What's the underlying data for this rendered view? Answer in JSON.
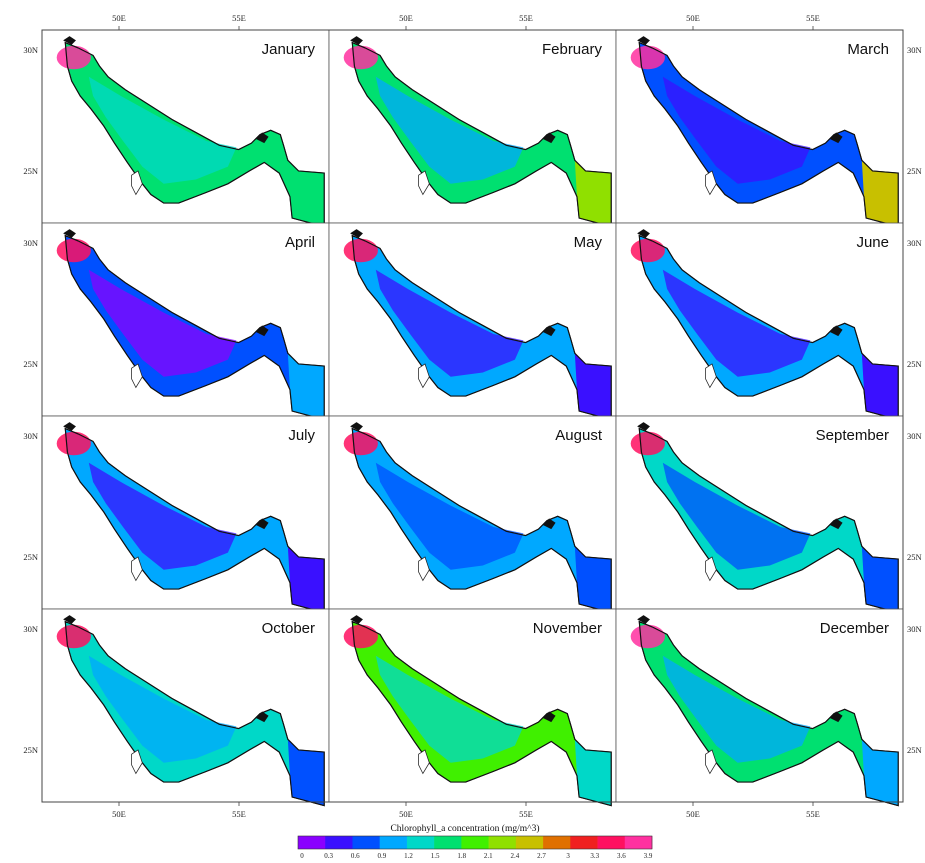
{
  "figure": {
    "panels": [
      {
        "month": "January",
        "mean_chl": 1.75,
        "north_hot": 3.6,
        "east_val": 1.5
      },
      {
        "month": "February",
        "mean_chl": 1.65,
        "north_hot": 3.9,
        "east_val": 2.1
      },
      {
        "month": "March",
        "mean_chl": 0.85,
        "north_hot": 3.9,
        "east_val": 2.6
      },
      {
        "month": "April",
        "mean_chl": 0.7,
        "north_hot": 3.5,
        "east_val": 1.1
      },
      {
        "month": "May",
        "mean_chl": 1.05,
        "north_hot": 3.3,
        "east_val": 0.4
      },
      {
        "month": "June",
        "mean_chl": 0.95,
        "north_hot": 3.3,
        "east_val": 0.4
      },
      {
        "month": "July",
        "mean_chl": 1.05,
        "north_hot": 3.3,
        "east_val": 0.4
      },
      {
        "month": "August",
        "mean_chl": 1.15,
        "north_hot": 3.3,
        "east_val": 0.6
      },
      {
        "month": "September",
        "mean_chl": 1.3,
        "north_hot": 3.3,
        "east_val": 0.8
      },
      {
        "month": "October",
        "mean_chl": 1.45,
        "north_hot": 3.3,
        "east_val": 0.8
      },
      {
        "month": "November",
        "mean_chl": 1.8,
        "north_hot": 3.3,
        "east_val": 1.2
      },
      {
        "month": "December",
        "mean_chl": 1.55,
        "north_hot": 3.6,
        "east_val": 1.1
      }
    ],
    "lon_ticks": [
      "50E",
      "55E"
    ],
    "lat_ticks": [
      "30N",
      "25N"
    ],
    "colorbar": {
      "title": "Chlorophyll_a concentration (mg/m^3)",
      "ticks": [
        "0",
        "0.3",
        "0.6",
        "0.9",
        "1.2",
        "1.5",
        "1.8",
        "2.1",
        "2.4",
        "2.7",
        "3",
        "3.3",
        "3.6",
        "3.9"
      ],
      "range": [
        0,
        3.9
      ],
      "colors": [
        "#8a00ff",
        "#3a10ff",
        "#0050ff",
        "#00a8ff",
        "#00d8c8",
        "#00e070",
        "#40f000",
        "#90e000",
        "#c8c000",
        "#e07000",
        "#f02020",
        "#ff1060",
        "#ff30a0"
      ]
    }
  }
}
